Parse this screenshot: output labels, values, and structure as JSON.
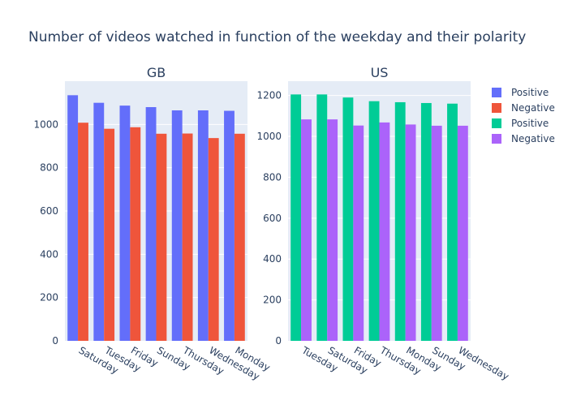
{
  "chart_data": {
    "type": "bar",
    "title": "Number of videos watched in function of the weekday and their polarity",
    "legend_position": "top-right",
    "grid": true,
    "colors": {
      "plot_background": "#e5ecf6",
      "gridline": "#ffffff",
      "text": "#2a3f5f"
    },
    "panels": [
      {
        "title": "GB",
        "categories": [
          "Saturday",
          "Tuesday",
          "Friday",
          "Sunday",
          "Thursday",
          "Wednesday",
          "Monday"
        ],
        "ylim": [
          0,
          1200
        ],
        "yticks": [
          0,
          200,
          400,
          600,
          800,
          1000
        ],
        "series": [
          {
            "name": "Positive",
            "color": "#636efa",
            "values": [
              1135,
              1100,
              1087,
              1080,
              1065,
              1065,
              1063
            ]
          },
          {
            "name": "Negative",
            "color": "#ef553b",
            "values": [
              1008,
              980,
              987,
              957,
              958,
              937,
              957
            ]
          }
        ]
      },
      {
        "title": "US",
        "categories": [
          "Tuesday",
          "Saturday",
          "Friday",
          "Thursday",
          "Monday",
          "Sunday",
          "Wednesday"
        ],
        "ylim": [
          0,
          1270
        ],
        "yticks": [
          0,
          200,
          400,
          600,
          800,
          1000,
          1200
        ],
        "series": [
          {
            "name": "Positive",
            "color": "#00cc96",
            "values": [
              1205,
              1205,
              1190,
              1172,
              1167,
              1163,
              1160
            ]
          },
          {
            "name": "Negative",
            "color": "#ab63fa",
            "values": [
              1083,
              1083,
              1053,
              1068,
              1058,
              1052,
              1052
            ]
          }
        ]
      }
    ]
  }
}
